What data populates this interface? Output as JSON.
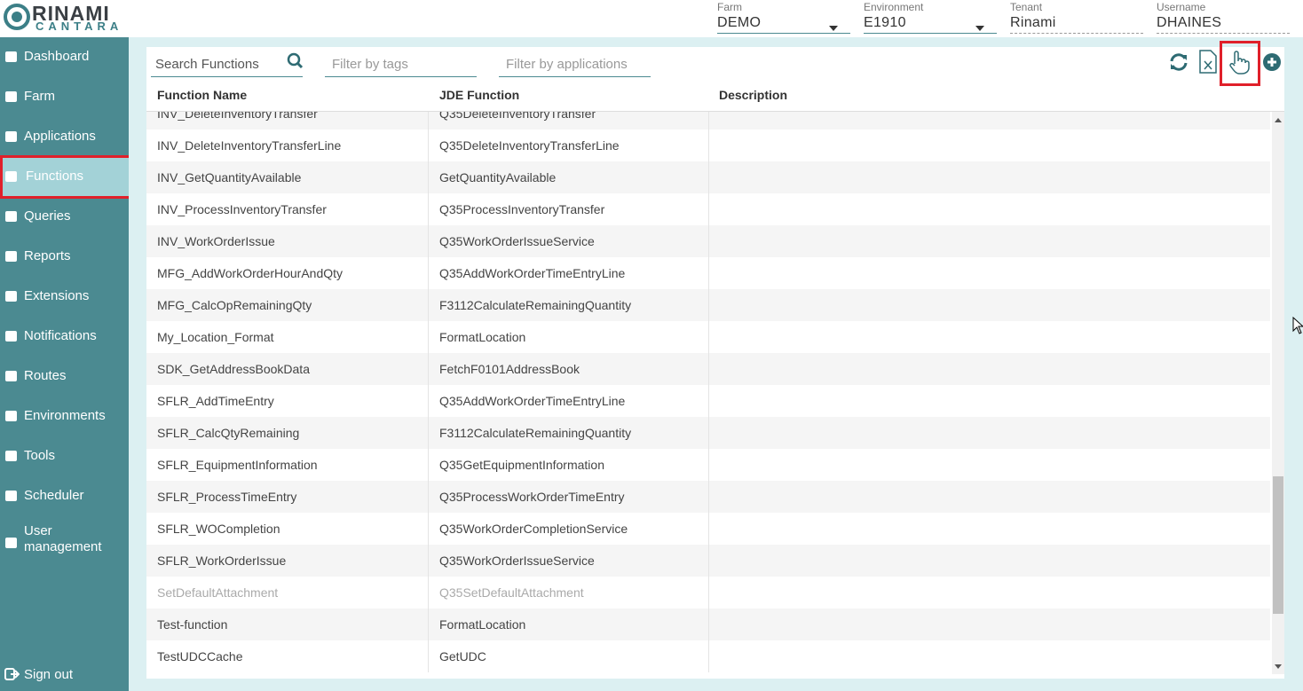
{
  "logo": {
    "name": "RINAMI",
    "sub": "CANTARA"
  },
  "header": {
    "fields": [
      {
        "label": "Farm",
        "value": "DEMO",
        "dropdown": true
      },
      {
        "label": "Environment",
        "value": "E1910",
        "dropdown": true
      },
      {
        "label": "Tenant",
        "value": "Rinami",
        "dropdown": false
      },
      {
        "label": "Username",
        "value": "DHAINES",
        "dropdown": false
      }
    ]
  },
  "sidebar": {
    "items": [
      {
        "label": "Dashboard"
      },
      {
        "label": "Farm"
      },
      {
        "label": "Applications"
      },
      {
        "label": "Functions",
        "active": true
      },
      {
        "label": "Queries"
      },
      {
        "label": "Reports"
      },
      {
        "label": "Extensions"
      },
      {
        "label": "Notifications"
      },
      {
        "label": "Routes"
      },
      {
        "label": "Environments"
      },
      {
        "label": "Tools"
      },
      {
        "label": "Scheduler"
      },
      {
        "label": "User management"
      }
    ],
    "sign_out": "Sign out"
  },
  "toolbar": {
    "search": "Search Functions",
    "tags": "Filter by tags",
    "applications": "Filter by applications"
  },
  "table": {
    "columns": [
      "Function Name",
      "JDE Function",
      "Description"
    ],
    "rows": [
      {
        "function_name": "INV_DeleteInventoryTransfer",
        "jde_function": "Q35DeleteInventoryTransfer"
      },
      {
        "function_name": "INV_DeleteInventoryTransferLine",
        "jde_function": "Q35DeleteInventoryTransferLine"
      },
      {
        "function_name": "INV_GetQuantityAvailable",
        "jde_function": "GetQuantityAvailable"
      },
      {
        "function_name": "INV_ProcessInventoryTransfer",
        "jde_function": "Q35ProcessInventoryTransfer"
      },
      {
        "function_name": "INV_WorkOrderIssue",
        "jde_function": "Q35WorkOrderIssueService"
      },
      {
        "function_name": "MFG_AddWorkOrderHourAndQty",
        "jde_function": "Q35AddWorkOrderTimeEntryLine"
      },
      {
        "function_name": "MFG_CalcOpRemainingQty",
        "jde_function": "F3112CalculateRemainingQuantity"
      },
      {
        "function_name": "My_Location_Format",
        "jde_function": "FormatLocation"
      },
      {
        "function_name": "SDK_GetAddressBookData",
        "jde_function": "FetchF0101AddressBook"
      },
      {
        "function_name": "SFLR_AddTimeEntry",
        "jde_function": "Q35AddWorkOrderTimeEntryLine"
      },
      {
        "function_name": "SFLR_CalcQtyRemaining",
        "jde_function": "F3112CalculateRemainingQuantity"
      },
      {
        "function_name": "SFLR_EquipmentInformation",
        "jde_function": "Q35GetEquipmentInformation"
      },
      {
        "function_name": "SFLR_ProcessTimeEntry",
        "jde_function": "Q35ProcessWorkOrderTimeEntry"
      },
      {
        "function_name": "SFLR_WOCompletion",
        "jde_function": "Q35WorkOrderCompletionService"
      },
      {
        "function_name": "SFLR_WorkOrderIssue",
        "jde_function": "Q35WorkOrderIssueService"
      },
      {
        "function_name": "SetDefaultAttachment",
        "jde_function": "Q35SetDefaultAttachment",
        "disabled": true
      },
      {
        "function_name": "Test-function",
        "jde_function": "FormatLocation"
      },
      {
        "function_name": "TestUDCCache",
        "jde_function": "GetUDC"
      }
    ]
  }
}
